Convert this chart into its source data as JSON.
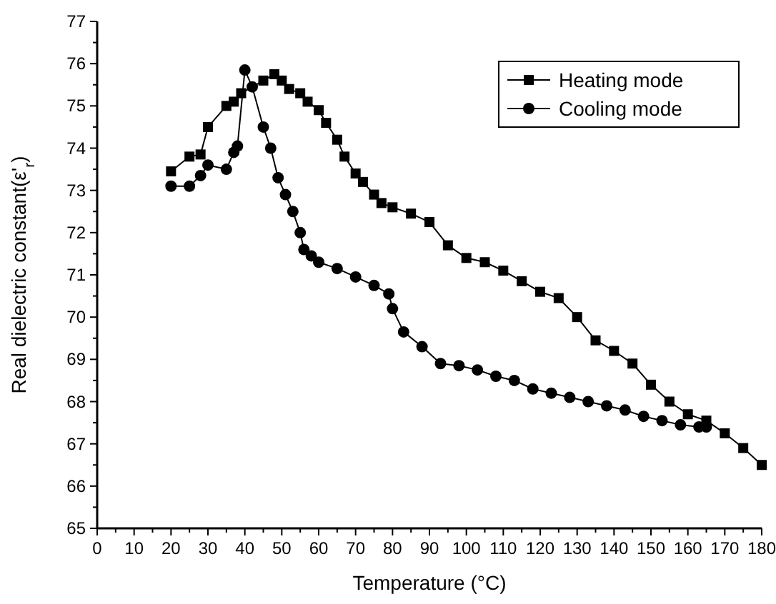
{
  "chart_data": {
    "type": "line",
    "xlabel": "Temperature (°C)",
    "ylabel": "Real dielectric constant(ε'$_{r}$)",
    "xlim": [
      0,
      180
    ],
    "xticks": [
      0,
      10,
      20,
      30,
      40,
      50,
      60,
      70,
      80,
      90,
      100,
      110,
      120,
      130,
      140,
      150,
      160,
      170,
      180
    ],
    "ylim": [
      65,
      77
    ],
    "yticks": [
      65,
      66,
      67,
      68,
      69,
      70,
      71,
      72,
      73,
      74,
      75,
      76,
      77
    ],
    "legend": "top right",
    "grid": false,
    "series": [
      {
        "name": "Heating mode",
        "color": "#000000",
        "marker": "square",
        "x": [
          20,
          25,
          28,
          30,
          35,
          37,
          39,
          42,
          45,
          48,
          50,
          52,
          55,
          57,
          60,
          62,
          65,
          67,
          70,
          72,
          75,
          77,
          80,
          85,
          90,
          95,
          100,
          105,
          110,
          115,
          120,
          125,
          130,
          135,
          140,
          145,
          150,
          155,
          160,
          165,
          170,
          175,
          180
        ],
        "values": [
          73.45,
          73.8,
          73.85,
          74.5,
          75.0,
          75.1,
          75.3,
          null,
          75.6,
          75.75,
          75.6,
          75.4,
          75.3,
          75.1,
          74.9,
          74.6,
          74.2,
          73.8,
          73.4,
          73.2,
          72.9,
          72.7,
          72.6,
          72.45,
          72.25,
          71.7,
          71.4,
          71.3,
          71.1,
          70.85,
          70.6,
          70.45,
          70.0,
          69.45,
          69.2,
          68.9,
          68.4,
          68.0,
          67.7,
          67.55,
          67.25,
          66.9,
          66.5
        ]
      },
      {
        "name": "Cooling mode",
        "color": "#000000",
        "marker": "circle",
        "x": [
          20,
          25,
          28,
          30,
          35,
          37,
          38,
          40,
          42,
          45,
          47,
          49,
          51,
          53,
          55,
          56,
          58,
          60,
          65,
          70,
          75,
          79,
          80,
          83,
          88,
          93,
          98,
          103,
          108,
          113,
          118,
          123,
          128,
          133,
          138,
          143,
          148,
          153,
          158,
          163,
          165
        ],
        "values": [
          73.1,
          73.1,
          73.35,
          73.6,
          73.5,
          73.9,
          74.05,
          75.85,
          75.45,
          74.5,
          74.0,
          73.3,
          72.9,
          72.5,
          72.0,
          71.6,
          71.45,
          71.3,
          71.15,
          70.95,
          70.75,
          70.55,
          70.2,
          69.65,
          69.3,
          68.9,
          68.85,
          68.75,
          68.6,
          68.5,
          68.3,
          68.2,
          68.1,
          68.0,
          67.9,
          67.8,
          67.65,
          67.55,
          67.45,
          67.4,
          67.4
        ]
      }
    ]
  }
}
